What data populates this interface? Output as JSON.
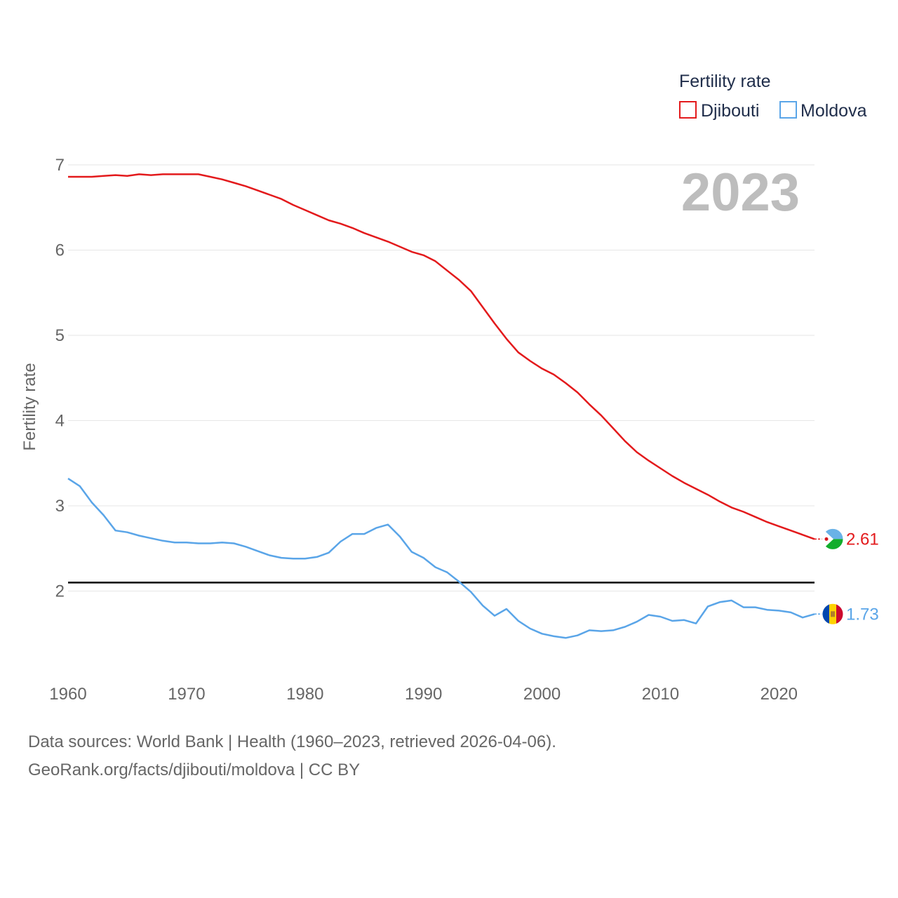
{
  "chart_data": {
    "type": "line",
    "ylabel": "Fertility rate",
    "legend_title": "Fertility rate",
    "year_label": "2023",
    "xlim": [
      1960,
      2023
    ],
    "ylim": [
      1.0,
      7.0
    ],
    "yticks": [
      2,
      3,
      4,
      5,
      6,
      7
    ],
    "xticks": [
      1960,
      1970,
      1980,
      1990,
      2000,
      2010,
      2020
    ],
    "reference_line": {
      "y": 2.1
    },
    "series": [
      {
        "name": "Djibouti",
        "color": "#e31a1c",
        "end_label": "2.61",
        "x": [
          1960,
          1961,
          1962,
          1963,
          1964,
          1965,
          1966,
          1967,
          1968,
          1969,
          1970,
          1971,
          1972,
          1973,
          1974,
          1975,
          1976,
          1977,
          1978,
          1979,
          1980,
          1981,
          1982,
          1983,
          1984,
          1985,
          1986,
          1987,
          1988,
          1989,
          1990,
          1991,
          1992,
          1993,
          1994,
          1995,
          1996,
          1997,
          1998,
          1999,
          2000,
          2001,
          2002,
          2003,
          2004,
          2005,
          2006,
          2007,
          2008,
          2009,
          2010,
          2011,
          2012,
          2013,
          2014,
          2015,
          2016,
          2017,
          2018,
          2019,
          2020,
          2021,
          2022,
          2023
        ],
        "values": [
          6.86,
          6.86,
          6.86,
          6.87,
          6.88,
          6.87,
          6.89,
          6.88,
          6.89,
          6.89,
          6.89,
          6.89,
          6.86,
          6.83,
          6.79,
          6.75,
          6.7,
          6.65,
          6.6,
          6.53,
          6.47,
          6.41,
          6.35,
          6.31,
          6.26,
          6.2,
          6.15,
          6.1,
          6.04,
          5.98,
          5.94,
          5.87,
          5.76,
          5.65,
          5.52,
          5.33,
          5.14,
          4.96,
          4.8,
          4.7,
          4.61,
          4.54,
          4.44,
          4.33,
          4.19,
          4.06,
          3.91,
          3.76,
          3.63,
          3.53,
          3.44,
          3.35,
          3.27,
          3.2,
          3.13,
          3.05,
          2.98,
          2.93,
          2.87,
          2.81,
          2.76,
          2.71,
          2.66,
          2.61
        ]
      },
      {
        "name": "Moldova",
        "color": "#5aa5e8",
        "end_label": "1.73",
        "x": [
          1960,
          1961,
          1962,
          1963,
          1964,
          1965,
          1966,
          1967,
          1968,
          1969,
          1970,
          1971,
          1972,
          1973,
          1974,
          1975,
          1976,
          1977,
          1978,
          1979,
          1980,
          1981,
          1982,
          1983,
          1984,
          1985,
          1986,
          1987,
          1988,
          1989,
          1990,
          1991,
          1992,
          1993,
          1994,
          1995,
          1996,
          1997,
          1998,
          1999,
          2000,
          2001,
          2002,
          2003,
          2004,
          2005,
          2006,
          2007,
          2008,
          2009,
          2010,
          2011,
          2012,
          2013,
          2014,
          2015,
          2016,
          2017,
          2018,
          2019,
          2020,
          2021,
          2022,
          2023
        ],
        "values": [
          3.32,
          3.23,
          3.04,
          2.89,
          2.71,
          2.69,
          2.65,
          2.62,
          2.59,
          2.57,
          2.57,
          2.56,
          2.56,
          2.57,
          2.56,
          2.52,
          2.47,
          2.42,
          2.39,
          2.38,
          2.38,
          2.4,
          2.45,
          2.58,
          2.67,
          2.67,
          2.74,
          2.78,
          2.64,
          2.46,
          2.39,
          2.28,
          2.22,
          2.11,
          1.99,
          1.83,
          1.71,
          1.79,
          1.65,
          1.56,
          1.5,
          1.47,
          1.45,
          1.48,
          1.54,
          1.53,
          1.54,
          1.58,
          1.64,
          1.72,
          1.7,
          1.65,
          1.66,
          1.62,
          1.82,
          1.87,
          1.89,
          1.81,
          1.81,
          1.78,
          1.77,
          1.75,
          1.69,
          1.73
        ]
      }
    ]
  },
  "footer": {
    "sources": "Data sources: World Bank | Health (1960–2023, retrieved 2026-04-06).",
    "credit": "GeoRank.org/facts/djibouti/moldova | CC BY"
  }
}
